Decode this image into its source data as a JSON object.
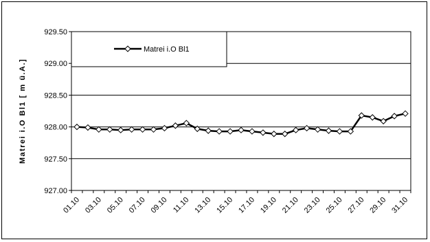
{
  "chart_data": {
    "type": "line",
    "ylabel": "Matrei i.O Bl1 [ m ü.A.]",
    "ylim": [
      927.0,
      929.5
    ],
    "yticks": [
      "927.00",
      "927.50",
      "928.00",
      "928.50",
      "929.00",
      "929.50"
    ],
    "grid": true,
    "legend_position": "top-left",
    "x": [
      "01.10",
      "02.10",
      "03.10",
      "04.10",
      "05.10",
      "06.10",
      "07.10",
      "08.10",
      "09.10",
      "10.10",
      "11.10",
      "12.10",
      "13.10",
      "14.10",
      "15.10",
      "16.10",
      "17.10",
      "18.10",
      "19.10",
      "20.10",
      "21.10",
      "22.10",
      "23.10",
      "24.10",
      "25.10",
      "26.10",
      "27.10",
      "28.10",
      "29.10",
      "30.10",
      "31.10"
    ],
    "xtick_labels": [
      "01.10",
      "03.10",
      "05.10",
      "07.10",
      "09.10",
      "11.10",
      "13.10",
      "15.10",
      "17.10",
      "19.10",
      "21.10",
      "23.10",
      "25.10",
      "27.10",
      "29.10",
      "31.10"
    ],
    "series": [
      {
        "name": "Matrei i.O Bl1",
        "color": "#000000",
        "marker": "diamond",
        "values": [
          928.0,
          927.99,
          927.96,
          927.96,
          927.95,
          927.96,
          927.96,
          927.96,
          927.98,
          928.02,
          928.06,
          927.97,
          927.94,
          927.93,
          927.93,
          927.95,
          927.93,
          927.91,
          927.89,
          927.89,
          927.95,
          927.98,
          927.96,
          927.94,
          927.93,
          927.93,
          928.18,
          928.15,
          928.09,
          928.17,
          928.21
        ]
      }
    ]
  }
}
